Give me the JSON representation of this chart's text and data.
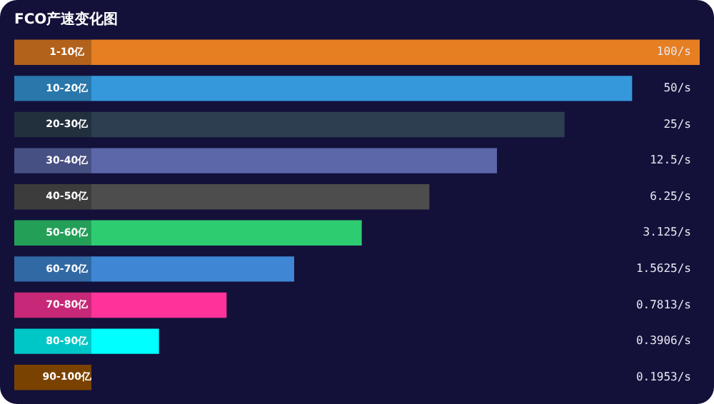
{
  "chart_data": {
    "type": "bar",
    "orientation": "horizontal",
    "title": "FCO产速变化图",
    "categories": [
      "1-10亿",
      "10-20亿",
      "20-30亿",
      "30-40亿",
      "40-50亿",
      "50-60亿",
      "60-70亿",
      "70-80亿",
      "80-90亿",
      "90-100亿"
    ],
    "values": [
      100,
      50,
      25,
      12.5,
      6.25,
      3.125,
      1.5625,
      0.7813,
      0.3906,
      0.1953
    ],
    "value_labels": [
      "100/s",
      "50/s",
      "25/s",
      "12.5/s",
      "6.25/s",
      "3.125/s",
      "1.5625/s",
      "0.7813/s",
      "0.3906/s",
      "0.1953/s"
    ],
    "colors": [
      "#e67e22",
      "#3498db",
      "#2c3e50",
      "#5b67a8",
      "#4d4d4d",
      "#2ecc71",
      "#3f86d4",
      "#ff3399",
      "#00ffff",
      "#7a4200"
    ],
    "log": "x",
    "xlim": [
      0.1953,
      100
    ],
    "tick_labels": "y",
    "grid": false,
    "legend": false
  }
}
